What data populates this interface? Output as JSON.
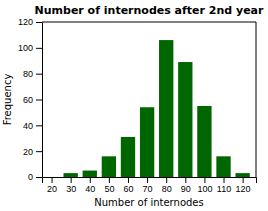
{
  "chart_data": {
    "type": "bar",
    "title": "Number of internodes after 2nd year",
    "xlabel": "Number of internodes",
    "ylabel": "Frequency",
    "x": [
      20,
      30,
      40,
      50,
      60,
      70,
      80,
      90,
      100,
      110,
      120
    ],
    "values": [
      0,
      3,
      5,
      16,
      31,
      54,
      106,
      89,
      55,
      16,
      3
    ],
    "color": "#006600",
    "xlim": [
      15,
      127
    ],
    "ylim": [
      0,
      120
    ],
    "xticks": [
      20,
      30,
      40,
      50,
      60,
      70,
      80,
      90,
      100,
      110,
      120
    ],
    "yticks": [
      0,
      20,
      40,
      60,
      80,
      100,
      120
    ]
  }
}
